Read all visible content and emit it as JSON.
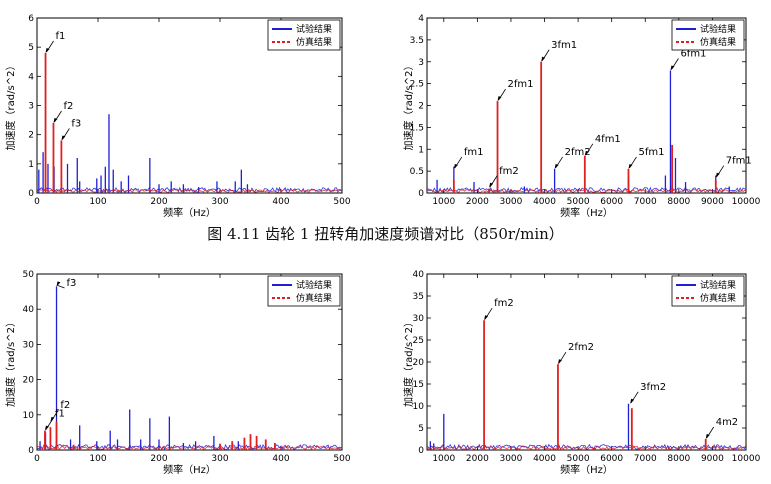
{
  "caption": "图 4.11 齿轮 1 扭转角加速度频谱对比（850r/min）",
  "legend": {
    "test": "试验结果",
    "sim": "仿真结果"
  },
  "colors": {
    "test": "#1f1fd6",
    "sim": "#e02020",
    "axis": "#000000"
  },
  "chart_data": [
    {
      "type": "line",
      "xlabel": "频率（Hz）",
      "ylabel": "加速度（rad/s^2）",
      "xlim": [
        0,
        500
      ],
      "ylim": [
        0,
        6
      ],
      "xticks": [
        0,
        100,
        200,
        300,
        400,
        500
      ],
      "yticks": [
        0,
        1,
        2,
        3,
        4,
        5,
        6
      ],
      "legend_position": "top-right",
      "series": [
        {
          "name": "试验结果",
          "peaks": [
            [
              3,
              0.8
            ],
            [
              10,
              1.4
            ],
            [
              18,
              1.0
            ],
            [
              28,
              0.9
            ],
            [
              40,
              0.5
            ],
            [
              50,
              1.0
            ],
            [
              66,
              1.2
            ],
            [
              70,
              0.4
            ],
            [
              98,
              0.5
            ],
            [
              105,
              0.6
            ],
            [
              112,
              0.9
            ],
            [
              118,
              2.7
            ],
            [
              125,
              0.8
            ],
            [
              138,
              0.4
            ],
            [
              150,
              0.6
            ],
            [
              185,
              1.2
            ],
            [
              200,
              0.3
            ],
            [
              220,
              0.4
            ],
            [
              240,
              0.3
            ],
            [
              265,
              0.2
            ],
            [
              295,
              0.4
            ],
            [
              325,
              0.4
            ],
            [
              335,
              0.8
            ],
            [
              345,
              0.3
            ]
          ]
        },
        {
          "name": "仿真结果",
          "peaks": [
            [
              14,
              4.8
            ],
            [
              27,
              2.4
            ],
            [
              40,
              1.8
            ]
          ]
        }
      ],
      "annotations": [
        {
          "text": "f1",
          "x": 14,
          "y": 4.8
        },
        {
          "text": "f2",
          "x": 27,
          "y": 2.4
        },
        {
          "text": "f3",
          "x": 40,
          "y": 1.8
        }
      ]
    },
    {
      "type": "line",
      "xlabel": "频率（Hz）",
      "ylabel": "加速度（rad/s^2）",
      "xlim": [
        500,
        10000
      ],
      "ylim": [
        0,
        4
      ],
      "xticks": [
        1000,
        2000,
        3000,
        4000,
        5000,
        6000,
        7000,
        8000,
        9000,
        10000
      ],
      "yticks": [
        0,
        0.5,
        1,
        1.5,
        2,
        2.5,
        3,
        3.5,
        4
      ],
      "legend_position": "top-right",
      "series": [
        {
          "name": "试验结果",
          "peaks": [
            [
              800,
              0.3
            ],
            [
              1300,
              0.6
            ],
            [
              1900,
              0.25
            ],
            [
              2600,
              0.35
            ],
            [
              3400,
              0.15
            ],
            [
              3900,
              0.4
            ],
            [
              4300,
              0.55
            ],
            [
              5200,
              0.3
            ],
            [
              6500,
              0.35
            ],
            [
              7600,
              0.4
            ],
            [
              7750,
              2.8
            ],
            [
              7900,
              0.8
            ],
            [
              8200,
              0.25
            ],
            [
              9100,
              0.4
            ],
            [
              9500,
              0.15
            ]
          ]
        },
        {
          "name": "仿真结果",
          "peaks": [
            [
              1300,
              0.3
            ],
            [
              2350,
              0.1
            ],
            [
              2600,
              2.1
            ],
            [
              3900,
              3.0
            ],
            [
              5200,
              0.85
            ],
            [
              6500,
              0.55
            ],
            [
              7800,
              1.1
            ],
            [
              9100,
              0.3
            ]
          ]
        }
      ],
      "annotations": [
        {
          "text": "fm1",
          "x": 1300,
          "y": 0.55
        },
        {
          "text": "fm2",
          "x": 2350,
          "y": 0.12
        },
        {
          "text": "2fm1",
          "x": 2600,
          "y": 2.1
        },
        {
          "text": "3fm1",
          "x": 3900,
          "y": 3.0
        },
        {
          "text": "2fm2",
          "x": 4300,
          "y": 0.55
        },
        {
          "text": "4fm1",
          "x": 5200,
          "y": 0.85
        },
        {
          "text": "5fm1",
          "x": 6500,
          "y": 0.55
        },
        {
          "text": "6fm1",
          "x": 7750,
          "y": 2.8
        },
        {
          "text": "7fm1",
          "x": 9100,
          "y": 0.35
        }
      ]
    },
    {
      "type": "line",
      "xlabel": "频率（Hz）",
      "ylabel": "加速度（rad/s^2）",
      "xlim": [
        0,
        500
      ],
      "ylim": [
        0,
        50
      ],
      "xticks": [
        0,
        100,
        200,
        300,
        400,
        500
      ],
      "yticks": [
        0,
        10,
        20,
        30,
        40,
        50
      ],
      "legend_position": "top-right",
      "series": [
        {
          "name": "试验结果",
          "peaks": [
            [
              5,
              2.5
            ],
            [
              14,
              5.0
            ],
            [
              32,
              46.5
            ],
            [
              55,
              3.0
            ],
            [
              70,
              7.0
            ],
            [
              98,
              2.5
            ],
            [
              120,
              5.5
            ],
            [
              132,
              3.0
            ],
            [
              152,
              11.5
            ],
            [
              170,
              3.0
            ],
            [
              185,
              9.0
            ],
            [
              200,
              3.0
            ],
            [
              217,
              9.5
            ],
            [
              240,
              2.0
            ],
            [
              260,
              2.5
            ],
            [
              290,
              4.0
            ],
            [
              330,
              2.5
            ]
          ]
        },
        {
          "name": "仿真结果",
          "peaks": [
            [
              13,
              5.5
            ],
            [
              22,
              6.5
            ],
            [
              32,
              8.0
            ],
            [
              60,
              1.5
            ],
            [
              300,
              1.8
            ],
            [
              320,
              2.5
            ],
            [
              340,
              3.5
            ],
            [
              350,
              4.5
            ],
            [
              360,
              4.0
            ],
            [
              375,
              3.0
            ],
            [
              390,
              2.0
            ]
          ]
        }
      ],
      "annotations": [
        {
          "text": "f1",
          "x": 13,
          "y": 5.5
        },
        {
          "text": "f2",
          "x": 22,
          "y": 8.0
        },
        {
          "text": "f3",
          "x": 32,
          "y": 46.5
        }
      ]
    },
    {
      "type": "line",
      "xlabel": "频率（Hz）",
      "ylabel": "加速度（rad/s^2）",
      "xlim": [
        500,
        10000
      ],
      "ylim": [
        0,
        40
      ],
      "xticks": [
        1000,
        2000,
        3000,
        4000,
        5000,
        6000,
        7000,
        8000,
        9000,
        10000
      ],
      "yticks": [
        0,
        5,
        10,
        15,
        20,
        25,
        30,
        35,
        40
      ],
      "legend_position": "top-right",
      "series": [
        {
          "name": "试验结果",
          "peaks": [
            [
              600,
              2.0
            ],
            [
              700,
              1.5
            ],
            [
              1000,
              8.2
            ],
            [
              2200,
              1.5
            ],
            [
              4400,
              1.0
            ],
            [
              6500,
              10.5
            ],
            [
              6600,
              4.0
            ]
          ]
        },
        {
          "name": "仿真结果",
          "peaks": [
            [
              2200,
              29.5
            ],
            [
              4400,
              19.5
            ],
            [
              6600,
              9.5
            ],
            [
              8800,
              2.5
            ],
            [
              3000,
              0.6
            ],
            [
              5500,
              0.5
            ],
            [
              7700,
              0.5
            ]
          ]
        }
      ],
      "annotations": [
        {
          "text": "fm2",
          "x": 2200,
          "y": 29.5
        },
        {
          "text": "2fm2",
          "x": 4400,
          "y": 19.5
        },
        {
          "text": "3fm2",
          "x": 6550,
          "y": 10.5
        },
        {
          "text": "4m2",
          "x": 8800,
          "y": 2.5
        }
      ]
    }
  ]
}
